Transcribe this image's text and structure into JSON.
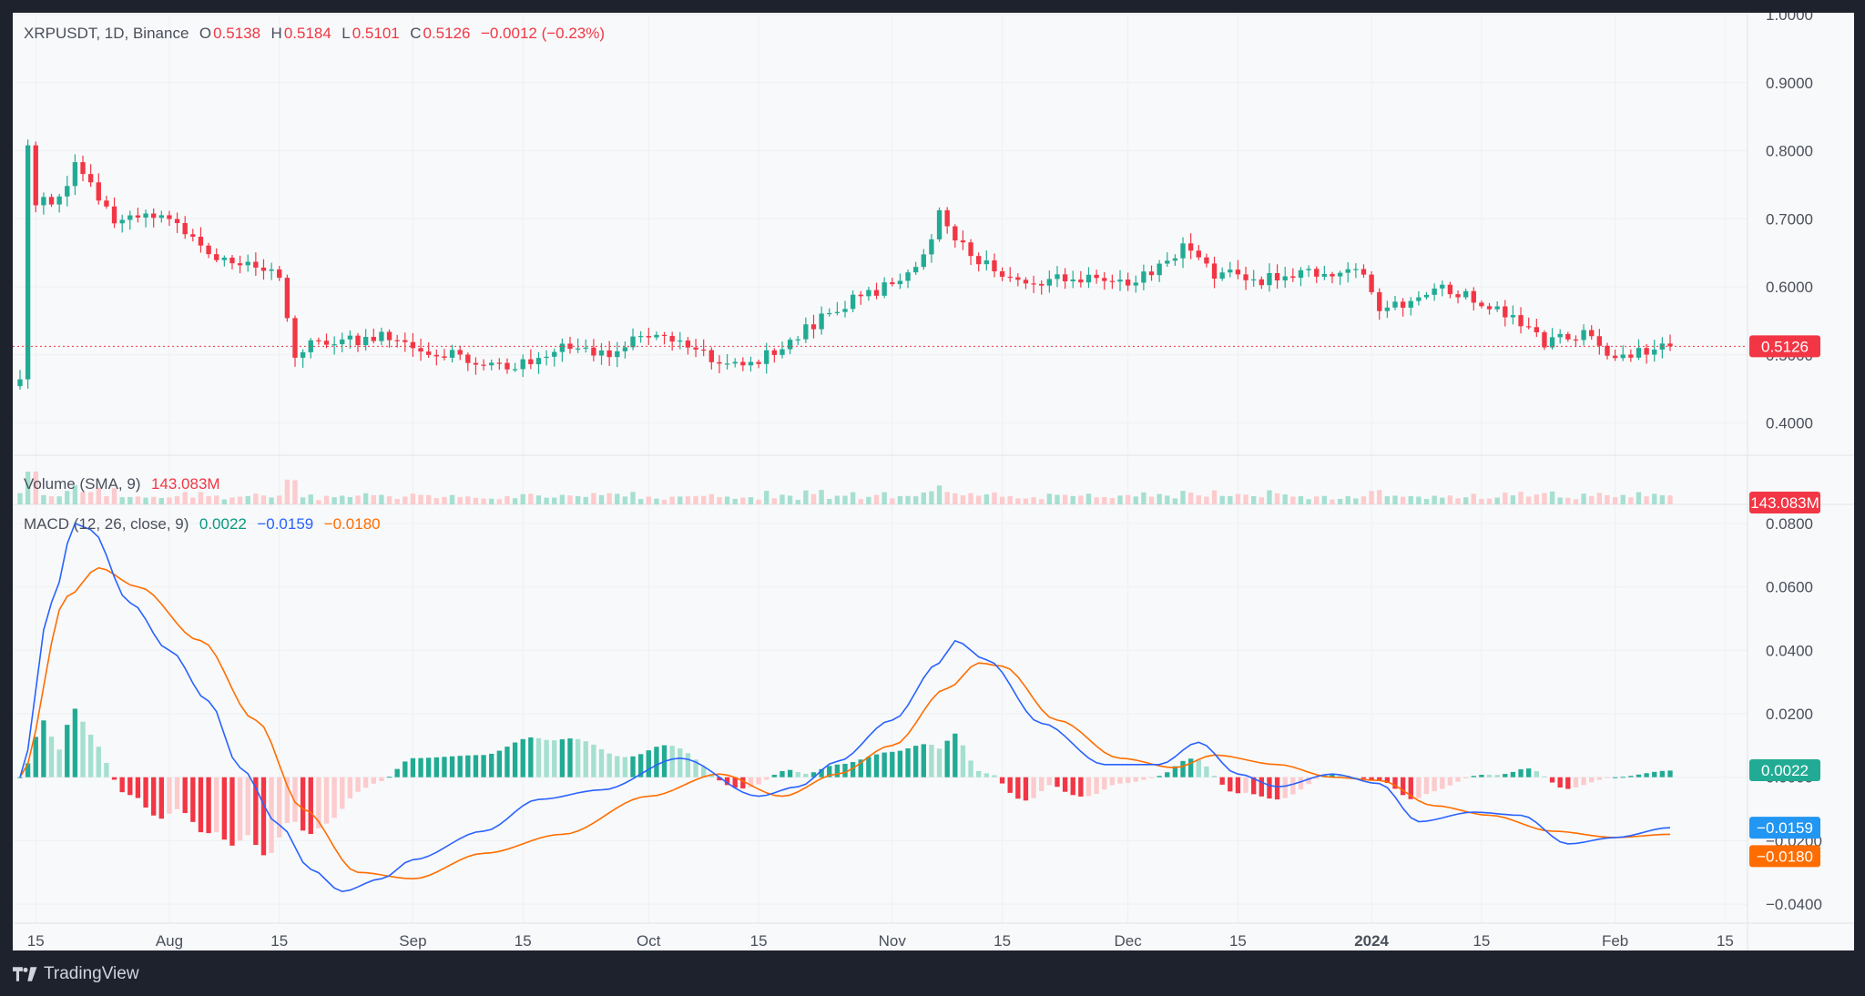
{
  "symbol": {
    "pair": "XRPUSDT, 1D, Binance",
    "open_label": "O",
    "open": "0.5138",
    "high_label": "H",
    "high": "0.5184",
    "low_label": "L",
    "low": "0.5101",
    "close_label": "C",
    "close": "0.5126",
    "change": "−0.0012 (−0.23%)"
  },
  "volume_legend": {
    "label": "Volume (SMA, 9)",
    "value": "143.083M"
  },
  "macd_legend": {
    "label": "MACD (12, 26, close, 9)",
    "hist": "0.0022",
    "macd": "−0.0159",
    "signal": "−0.0180"
  },
  "badges": {
    "price": "0.5126",
    "volume": "143.083M",
    "hist": "0.0022",
    "macd": "−0.0159",
    "signal": "−0.0180"
  },
  "colors": {
    "up": "#22ab94",
    "down": "#f23645",
    "up_light": "#a5dfd0",
    "down_light": "#fccbcd",
    "macd_line": "#2962ff",
    "signal_line": "#ff6d00",
    "grid": "#eef0f3",
    "axis_text": "#4a4f5c"
  },
  "footer": {
    "brand": "TradingView",
    "logo_icon": "tradingview-logo-icon"
  },
  "chart_data": [
    {
      "type": "candlestick",
      "title": "XRPUSDT, 1D, Binance",
      "y_ticks": [
        "1.0000",
        "0.9000",
        "0.8000",
        "0.7000",
        "0.6000",
        "0.5000",
        "0.4000"
      ],
      "ylim": [
        0.37,
        1.0
      ],
      "x_ticks": [
        "15",
        "Aug",
        "15",
        "Sep",
        "15",
        "Oct",
        "15",
        "Nov",
        "15",
        "Dec",
        "15",
        "2024",
        "15",
        "Feb",
        "15"
      ],
      "x_tick_dates": [
        "2023-07-15",
        "2023-08-01",
        "2023-08-15",
        "2023-09-01",
        "2023-09-15",
        "2023-10-01",
        "2023-10-15",
        "2023-11-01",
        "2023-11-15",
        "2023-12-01",
        "2023-12-15",
        "2024-01-01",
        "2024-01-15",
        "2024-02-01",
        "2024-02-15"
      ],
      "date_range": [
        "2023-07-13",
        "2024-02-08"
      ],
      "last_price": 0.5126,
      "anchors": [
        [
          "2023-07-13",
          0.47
        ],
        [
          "2023-07-14",
          0.81
        ],
        [
          "2023-07-15",
          0.72
        ],
        [
          "2023-07-18",
          0.73
        ],
        [
          "2023-07-20",
          0.78
        ],
        [
          "2023-07-22",
          0.75
        ],
        [
          "2023-07-25",
          0.7
        ],
        [
          "2023-07-28",
          0.71
        ],
        [
          "2023-08-01",
          0.7
        ],
        [
          "2023-08-05",
          0.66
        ],
        [
          "2023-08-10",
          0.63
        ],
        [
          "2023-08-15",
          0.62
        ],
        [
          "2023-08-17",
          0.5
        ],
        [
          "2023-08-20",
          0.52
        ],
        [
          "2023-08-25",
          0.52
        ],
        [
          "2023-08-30",
          0.53
        ],
        [
          "2023-09-01",
          0.51
        ],
        [
          "2023-09-07",
          0.5
        ],
        [
          "2023-09-11",
          0.48
        ],
        [
          "2023-09-15",
          0.49
        ],
        [
          "2023-09-20",
          0.51
        ],
        [
          "2023-09-25",
          0.5
        ],
        [
          "2023-10-01",
          0.53
        ],
        [
          "2023-10-05",
          0.52
        ],
        [
          "2023-10-10",
          0.49
        ],
        [
          "2023-10-15",
          0.49
        ],
        [
          "2023-10-20",
          0.53
        ],
        [
          "2023-10-25",
          0.57
        ],
        [
          "2023-10-31",
          0.6
        ],
        [
          "2023-11-05",
          0.64
        ],
        [
          "2023-11-07",
          0.71
        ],
        [
          "2023-11-10",
          0.66
        ],
        [
          "2023-11-14",
          0.62
        ],
        [
          "2023-11-20",
          0.61
        ],
        [
          "2023-11-25",
          0.61
        ],
        [
          "2023-12-01",
          0.61
        ],
        [
          "2023-12-05",
          0.63
        ],
        [
          "2023-12-08",
          0.66
        ],
        [
          "2023-12-12",
          0.62
        ],
        [
          "2023-12-18",
          0.61
        ],
        [
          "2023-12-25",
          0.62
        ],
        [
          "2023-12-31",
          0.62
        ],
        [
          "2024-01-02",
          0.57
        ],
        [
          "2024-01-05",
          0.57
        ],
        [
          "2024-01-09",
          0.6
        ],
        [
          "2024-01-15",
          0.58
        ],
        [
          "2024-01-20",
          0.55
        ],
        [
          "2024-01-23",
          0.52
        ],
        [
          "2024-01-28",
          0.53
        ],
        [
          "2024-02-01",
          0.5
        ],
        [
          "2024-02-08",
          0.5126
        ]
      ]
    },
    {
      "type": "bar",
      "title": "Volume (SMA, 9)",
      "last_value": "143.083M",
      "series_note": "daily volume bars colored by candle direction"
    },
    {
      "type": "line",
      "title": "MACD (12, 26, close, 9)",
      "y_ticks": [
        "0.0800",
        "0.0600",
        "0.0400",
        "0.0200",
        "0.0000",
        "−0.0200",
        "−0.0400"
      ],
      "ylim": [
        -0.046,
        0.086
      ],
      "series": [
        {
          "name": "MACD",
          "color": "#2962ff",
          "points": [
            [
              "2023-07-13",
              0.0
            ],
            [
              "2023-07-17",
              0.055
            ],
            [
              "2023-07-20",
              0.08
            ],
            [
              "2023-07-22",
              0.078
            ],
            [
              "2023-07-27",
              0.055
            ],
            [
              "2023-08-01",
              0.04
            ],
            [
              "2023-08-06",
              0.024
            ],
            [
              "2023-08-10",
              0.003
            ],
            [
              "2023-08-15",
              -0.015
            ],
            [
              "2023-08-19",
              -0.029
            ],
            [
              "2023-08-23",
              -0.036
            ],
            [
              "2023-08-28",
              -0.032
            ],
            [
              "2023-09-01",
              -0.026
            ],
            [
              "2023-09-10",
              -0.017
            ],
            [
              "2023-09-17",
              -0.007
            ],
            [
              "2023-09-25",
              -0.004
            ],
            [
              "2023-10-05",
              0.006
            ],
            [
              "2023-10-15",
              -0.006
            ],
            [
              "2023-10-20",
              -0.003
            ],
            [
              "2023-10-25",
              0.005
            ],
            [
              "2023-11-01",
              0.018
            ],
            [
              "2023-11-07",
              0.036
            ],
            [
              "2023-11-09",
              0.043
            ],
            [
              "2023-11-13",
              0.037
            ],
            [
              "2023-11-20",
              0.017
            ],
            [
              "2023-11-28",
              0.004
            ],
            [
              "2023-12-05",
              0.004
            ],
            [
              "2023-12-10",
              0.011
            ],
            [
              "2023-12-15",
              0.001
            ],
            [
              "2023-12-20",
              -0.003
            ],
            [
              "2023-12-27",
              0.001
            ],
            [
              "2024-01-02",
              -0.002
            ],
            [
              "2024-01-07",
              -0.014
            ],
            [
              "2024-01-14",
              -0.011
            ],
            [
              "2024-01-20",
              -0.012
            ],
            [
              "2024-01-26",
              -0.021
            ],
            [
              "2024-02-01",
              -0.019
            ],
            [
              "2024-02-08",
              -0.0159
            ]
          ]
        },
        {
          "name": "Signal",
          "color": "#ff6d00",
          "points": [
            [
              "2023-07-13",
              0.0
            ],
            [
              "2023-07-19",
              0.057
            ],
            [
              "2023-07-23",
              0.066
            ],
            [
              "2023-07-28",
              0.06
            ],
            [
              "2023-08-05",
              0.043
            ],
            [
              "2023-08-12",
              0.018
            ],
            [
              "2023-08-18",
              -0.01
            ],
            [
              "2023-08-25",
              -0.03
            ],
            [
              "2023-09-01",
              -0.032
            ],
            [
              "2023-09-10",
              -0.024
            ],
            [
              "2023-09-20",
              -0.018
            ],
            [
              "2023-10-01",
              -0.006
            ],
            [
              "2023-10-10",
              0.001
            ],
            [
              "2023-10-18",
              -0.006
            ],
            [
              "2023-10-25",
              0.001
            ],
            [
              "2023-11-01",
              0.01
            ],
            [
              "2023-11-08",
              0.028
            ],
            [
              "2023-11-12",
              0.036
            ],
            [
              "2023-11-15",
              0.035
            ],
            [
              "2023-11-22",
              0.018
            ],
            [
              "2023-11-30",
              0.006
            ],
            [
              "2023-12-07",
              0.003
            ],
            [
              "2023-12-12",
              0.007
            ],
            [
              "2023-12-20",
              0.004
            ],
            [
              "2023-12-27",
              0.0
            ],
            [
              "2024-01-02",
              -0.001
            ],
            [
              "2024-01-09",
              -0.009
            ],
            [
              "2024-01-16",
              -0.012
            ],
            [
              "2024-01-24",
              -0.017
            ],
            [
              "2024-02-01",
              -0.019
            ],
            [
              "2024-02-08",
              -0.018
            ]
          ]
        }
      ],
      "histogram_last": 0.0022
    }
  ]
}
